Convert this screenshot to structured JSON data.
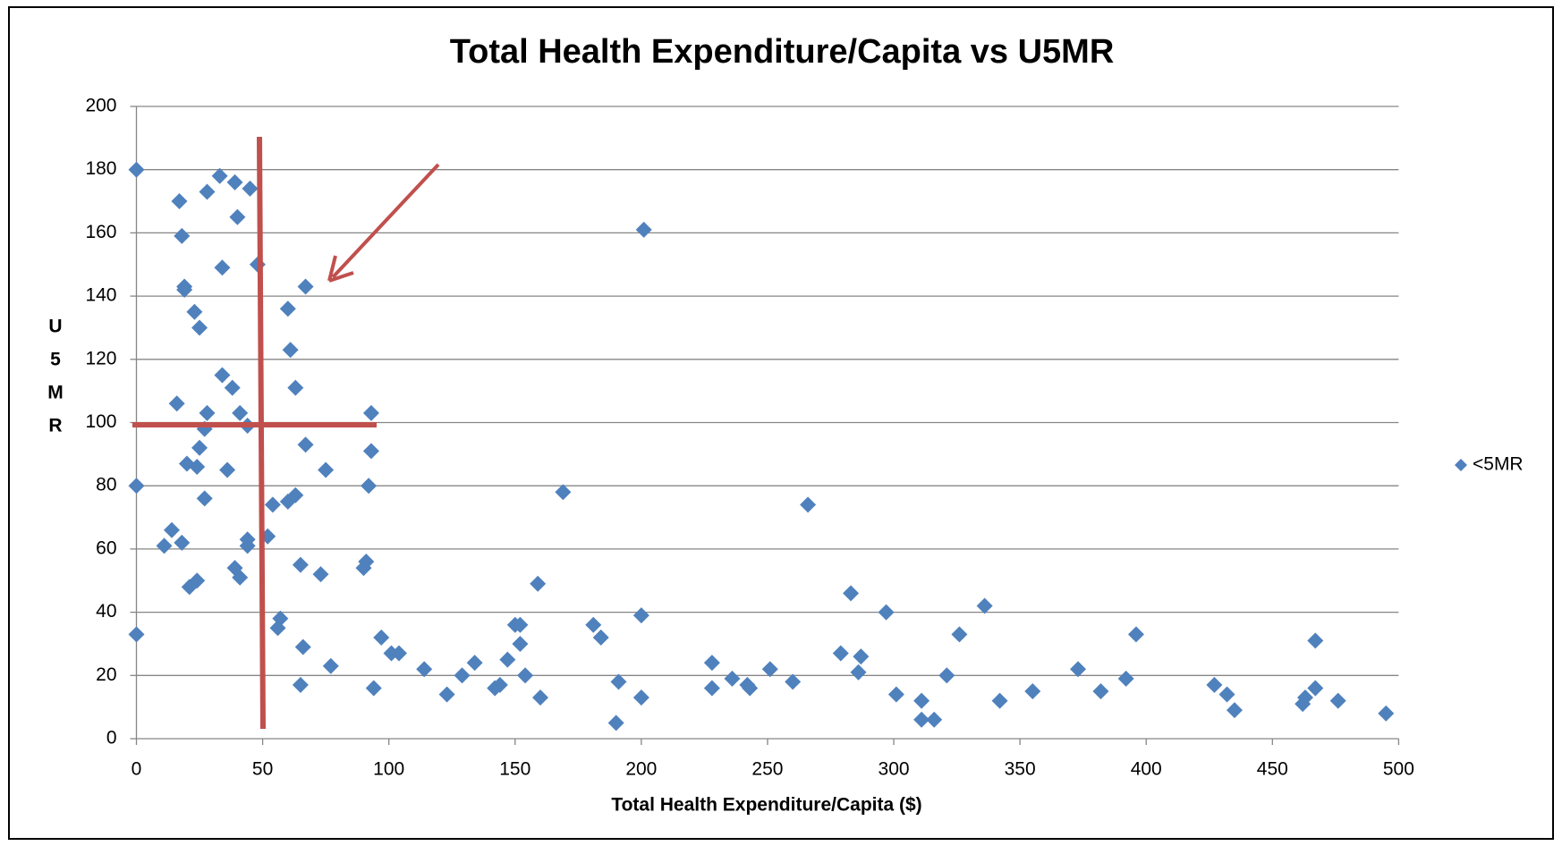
{
  "chart_data": {
    "type": "scatter",
    "title": "Total Health Expenditure/Capita vs U5MR",
    "x_label": "Total Health Expenditure/Capita ($)",
    "y_label": "U5MR",
    "xlim": [
      0,
      500
    ],
    "ylim": [
      0,
      200
    ],
    "xticks": [
      0,
      50,
      100,
      150,
      200,
      250,
      300,
      350,
      400,
      450,
      500
    ],
    "yticks": [
      0,
      20,
      40,
      60,
      80,
      100,
      120,
      140,
      160,
      180,
      200
    ],
    "grid": true,
    "legend": "right",
    "x": [
      0,
      0,
      0,
      11,
      14,
      16,
      17,
      18,
      18,
      19,
      19,
      20,
      21,
      23,
      24,
      24,
      25,
      25,
      27,
      27,
      28,
      28,
      33,
      34,
      34,
      36,
      38,
      39,
      39,
      40,
      41,
      41,
      44,
      44,
      44,
      45,
      48,
      52,
      54,
      56,
      57,
      60,
      60,
      61,
      63,
      63,
      65,
      65,
      66,
      67,
      67,
      73,
      75,
      77,
      90,
      91,
      92,
      93,
      93,
      94,
      97,
      101,
      104,
      114,
      123,
      129,
      134,
      142,
      144,
      147,
      150,
      152,
      152,
      154,
      159,
      160,
      169,
      181,
      184,
      190,
      191,
      200,
      200,
      201,
      228,
      228,
      236,
      242,
      243,
      251,
      260,
      266,
      279,
      283,
      286,
      287,
      297,
      301,
      311,
      311,
      316,
      321,
      326,
      336,
      342,
      355,
      373,
      382,
      392,
      396,
      427,
      432,
      435,
      462,
      463,
      467,
      467,
      476,
      495
    ],
    "series": [
      {
        "name": "<5MR",
        "color": "#4f81bd",
        "values": [
          180,
          80,
          33,
          61,
          66,
          106,
          170,
          159,
          62,
          143,
          142,
          87,
          48,
          135,
          86,
          50,
          130,
          92,
          76,
          98,
          103,
          173,
          178,
          149,
          115,
          85,
          111,
          176,
          54,
          165,
          51,
          103,
          99,
          63,
          61,
          174,
          150,
          64,
          74,
          35,
          38,
          136,
          75,
          123,
          111,
          77,
          55,
          17,
          29,
          143,
          93,
          52,
          85,
          23,
          54,
          56,
          80,
          103,
          91,
          16,
          32,
          27,
          27,
          22,
          14,
          20,
          24,
          16,
          17,
          25,
          36,
          36,
          30,
          20,
          49,
          13,
          78,
          36,
          32,
          5,
          18,
          39,
          13,
          161,
          24,
          16,
          19,
          17,
          16,
          22,
          18,
          74,
          27,
          46,
          21,
          26,
          40,
          14,
          12,
          6,
          6,
          20,
          33,
          42,
          12,
          15,
          22,
          15,
          19,
          33,
          17,
          14,
          9,
          11,
          13,
          31,
          16,
          12,
          8
        ]
      }
    ]
  }
}
